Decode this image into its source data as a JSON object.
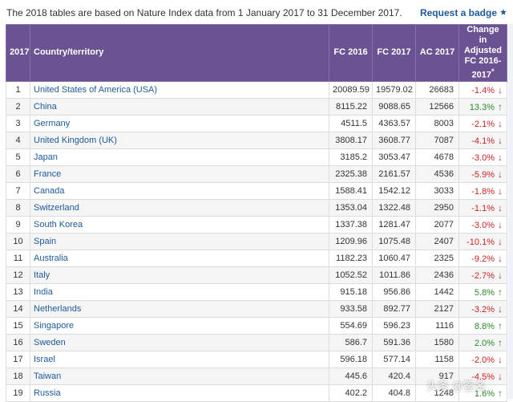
{
  "header": {
    "note": "The 2018 tables are based on Nature Index data from 1 January 2017 to 31 December 2017.",
    "badge_link": "Request a badge",
    "badge_icon": "star-icon"
  },
  "table": {
    "columns": {
      "rank": "2017",
      "country": "Country/territory",
      "fc2016": "FC 2016",
      "fc2017": "FC 2017",
      "ac2017": "AC 2017",
      "change": "Change in Adjusted FC 2016-2017",
      "change_marker": "*"
    },
    "rows": [
      {
        "rank": "1",
        "country": "United States of America (USA)",
        "fc2016": "20089.59",
        "fc2017": "19579.02",
        "ac2017": "26683",
        "change": "-1.4%",
        "dir": "down"
      },
      {
        "rank": "2",
        "country": "China",
        "fc2016": "8115.22",
        "fc2017": "9088.65",
        "ac2017": "12566",
        "change": "13.3%",
        "dir": "up"
      },
      {
        "rank": "3",
        "country": "Germany",
        "fc2016": "4511.5",
        "fc2017": "4363.57",
        "ac2017": "8003",
        "change": "-2.1%",
        "dir": "down"
      },
      {
        "rank": "4",
        "country": "United Kingdom (UK)",
        "fc2016": "3808.17",
        "fc2017": "3608.77",
        "ac2017": "7087",
        "change": "-4.1%",
        "dir": "down"
      },
      {
        "rank": "5",
        "country": "Japan",
        "fc2016": "3185.2",
        "fc2017": "3053.47",
        "ac2017": "4678",
        "change": "-3.0%",
        "dir": "down"
      },
      {
        "rank": "6",
        "country": "France",
        "fc2016": "2325.38",
        "fc2017": "2161.57",
        "ac2017": "4536",
        "change": "-5.9%",
        "dir": "down"
      },
      {
        "rank": "7",
        "country": "Canada",
        "fc2016": "1588.41",
        "fc2017": "1542.12",
        "ac2017": "3033",
        "change": "-1.8%",
        "dir": "down"
      },
      {
        "rank": "8",
        "country": "Switzerland",
        "fc2016": "1353.04",
        "fc2017": "1322.48",
        "ac2017": "2950",
        "change": "-1.1%",
        "dir": "down"
      },
      {
        "rank": "9",
        "country": "South Korea",
        "fc2016": "1337.38",
        "fc2017": "1281.47",
        "ac2017": "2077",
        "change": "-3.0%",
        "dir": "down"
      },
      {
        "rank": "10",
        "country": "Spain",
        "fc2016": "1209.96",
        "fc2017": "1075.48",
        "ac2017": "2407",
        "change": "-10.1%",
        "dir": "down"
      },
      {
        "rank": "11",
        "country": "Australia",
        "fc2016": "1182.23",
        "fc2017": "1060.47",
        "ac2017": "2325",
        "change": "-9.2%",
        "dir": "down"
      },
      {
        "rank": "12",
        "country": "Italy",
        "fc2016": "1052.52",
        "fc2017": "1011.86",
        "ac2017": "2436",
        "change": "-2.7%",
        "dir": "down"
      },
      {
        "rank": "13",
        "country": "India",
        "fc2016": "915.18",
        "fc2017": "956.86",
        "ac2017": "1442",
        "change": "5.8%",
        "dir": "up"
      },
      {
        "rank": "14",
        "country": "Netherlands",
        "fc2016": "933.58",
        "fc2017": "892.77",
        "ac2017": "2127",
        "change": "-3.2%",
        "dir": "down"
      },
      {
        "rank": "15",
        "country": "Singapore",
        "fc2016": "554.69",
        "fc2017": "596.23",
        "ac2017": "1116",
        "change": "8.8%",
        "dir": "up"
      },
      {
        "rank": "16",
        "country": "Sweden",
        "fc2016": "586.7",
        "fc2017": "591.36",
        "ac2017": "1580",
        "change": "2.0%",
        "dir": "up"
      },
      {
        "rank": "17",
        "country": "Israel",
        "fc2016": "596.18",
        "fc2017": "577.14",
        "ac2017": "1158",
        "change": "-2.0%",
        "dir": "down"
      },
      {
        "rank": "18",
        "country": "Taiwan",
        "fc2016": "445.6",
        "fc2017": "420.4",
        "ac2017": "917",
        "change": "-4.5%",
        "dir": "down"
      },
      {
        "rank": "19",
        "country": "Russia",
        "fc2016": "402.2",
        "fc2017": "404.8",
        "ac2017": "1248",
        "change": "1.6%",
        "dir": "up"
      }
    ]
  },
  "watermark": "头条 @签名",
  "colors": {
    "header_bg": "#6a5293",
    "link": "#1d5a9a",
    "down": "#cc2222",
    "up": "#2a8a2a"
  }
}
